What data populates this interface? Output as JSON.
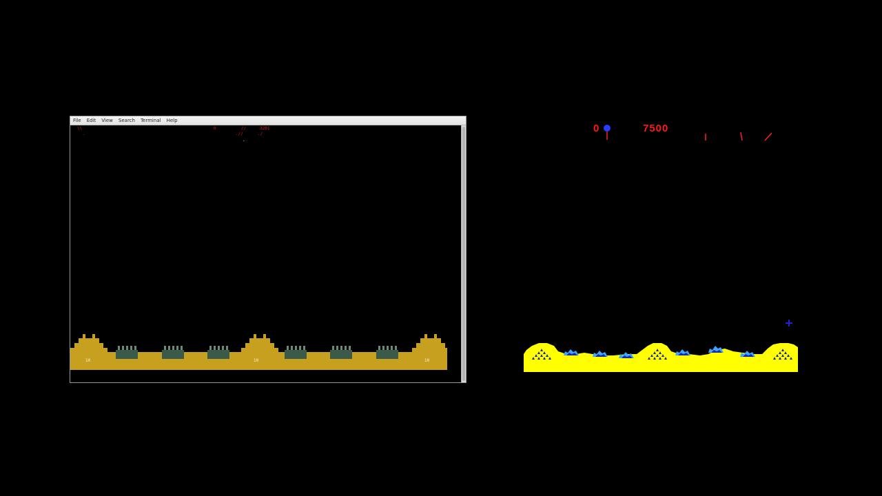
{
  "terminal": {
    "menu": [
      "File",
      "Edit",
      "View",
      "Search",
      "Terminal",
      "Help"
    ],
    "hud": {
      "score": "0",
      "hiscore": "3201",
      "slashes_top": "//",
      "slashes_mid": ".//",
      "slashes_right": "./",
      "backslash": "\\\\"
    },
    "bases": [
      {
        "label": "10"
      },
      {
        "label": "10"
      },
      {
        "label": "10"
      }
    ],
    "colors": {
      "ground": "#c8a020",
      "city": "#3a5a4a",
      "missile": "#d82020"
    }
  },
  "arcade": {
    "player_score": "0",
    "high_score": "7500",
    "colors": {
      "ground": "#ffff00",
      "score": "#ff1818",
      "city": "#3aa8ff",
      "crosshair": "#2222cc",
      "missile_trail": "#ff2020"
    }
  }
}
